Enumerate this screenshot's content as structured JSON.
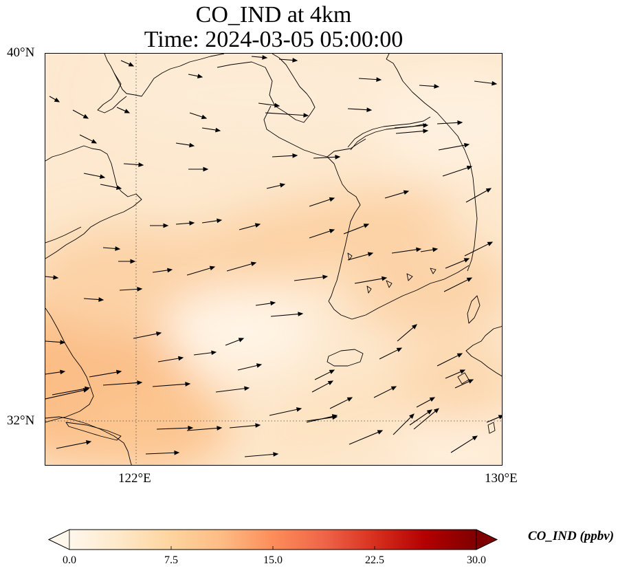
{
  "title": {
    "line1": "CO_IND at 4km",
    "line2": "Time: 2024-03-05 05:00:00"
  },
  "map": {
    "projection": "PlateCarree",
    "extent_lon": [
      119.9,
      130.0
    ],
    "extent_lat": [
      31.0,
      40.0
    ],
    "gridlines": {
      "lon": [
        122,
        130
      ],
      "lat": [
        32,
        40
      ],
      "style": "dotted"
    },
    "field_variable": "CO_IND",
    "field_range_ppbv": [
      2.5,
      8.5
    ],
    "vector_field": "wind arrows (generally westerly, ~east/northeast)"
  },
  "axes": {
    "lat_ticks": [
      "40°N",
      "32°N"
    ],
    "lon_ticks": [
      "122°E",
      "130°E"
    ]
  },
  "colorbar": {
    "label": "CO_IND (ppbv)",
    "ticks": [
      "0.0",
      "7.5",
      "15.0",
      "22.5",
      "30.0"
    ],
    "min": 0.0,
    "max": 30.0,
    "extend": "both",
    "colormap": "OrRd",
    "colors": [
      "#fff7ec",
      "#fee8c8",
      "#fdd49e",
      "#fdbb84",
      "#fc8d59",
      "#ef6548",
      "#d7301f",
      "#b30000",
      "#7f0000"
    ]
  }
}
